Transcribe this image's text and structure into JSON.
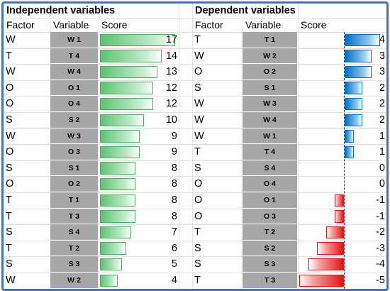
{
  "independent": {
    "title": "Independent variables",
    "headers": {
      "factor": "Factor",
      "variable": "Variable",
      "score": "Score"
    },
    "rows": [
      {
        "factor": "W",
        "variable": "W 1",
        "score": 17
      },
      {
        "factor": "T",
        "variable": "T 4",
        "score": 14
      },
      {
        "factor": "W",
        "variable": "W 4",
        "score": 13
      },
      {
        "factor": "O",
        "variable": "O 1",
        "score": 12
      },
      {
        "factor": "O",
        "variable": "O 4",
        "score": 12
      },
      {
        "factor": "S",
        "variable": "S 2",
        "score": 10
      },
      {
        "factor": "W",
        "variable": "W 3",
        "score": 9
      },
      {
        "factor": "O",
        "variable": "O 3",
        "score": 9
      },
      {
        "factor": "S",
        "variable": "S 1",
        "score": 8
      },
      {
        "factor": "O",
        "variable": "O 2",
        "score": 8
      },
      {
        "factor": "T",
        "variable": "T 1",
        "score": 8
      },
      {
        "factor": "T",
        "variable": "T 3",
        "score": 8
      },
      {
        "factor": "S",
        "variable": "S 4",
        "score": 7
      },
      {
        "factor": "T",
        "variable": "T 2",
        "score": 6
      },
      {
        "factor": "S",
        "variable": "S 3",
        "score": 5
      },
      {
        "factor": "W",
        "variable": "W 2",
        "score": 4
      }
    ]
  },
  "dependent": {
    "title": "Dependent variables",
    "headers": {
      "factor": "Factor",
      "variable": "Variable",
      "score": "Score"
    },
    "rows": [
      {
        "factor": "T",
        "variable": "T 1",
        "score": 4
      },
      {
        "factor": "W",
        "variable": "W 2",
        "score": 3
      },
      {
        "factor": "O",
        "variable": "O 2",
        "score": 3
      },
      {
        "factor": "S",
        "variable": "S 1",
        "score": 2
      },
      {
        "factor": "W",
        "variable": "W 3",
        "score": 2
      },
      {
        "factor": "W",
        "variable": "W 4",
        "score": 2
      },
      {
        "factor": "W",
        "variable": "W 1",
        "score": 1
      },
      {
        "factor": "T",
        "variable": "T 4",
        "score": 1
      },
      {
        "factor": "S",
        "variable": "S 4",
        "score": 0
      },
      {
        "factor": "O",
        "variable": "O 4",
        "score": 0
      },
      {
        "factor": "O",
        "variable": "O 1",
        "score": -1
      },
      {
        "factor": "O",
        "variable": "O 3",
        "score": -1
      },
      {
        "factor": "T",
        "variable": "T 2",
        "score": -2
      },
      {
        "factor": "S",
        "variable": "S 2",
        "score": -3
      },
      {
        "factor": "S",
        "variable": "S 3",
        "score": -4
      },
      {
        "factor": "T",
        "variable": "T 3",
        "score": -5
      }
    ]
  },
  "colors": {
    "frame": "#4472c4",
    "variable_fill": "#a6a6a6",
    "bar_independent": "#5cc272",
    "bar_positive": "#0070c0",
    "bar_negative": "#e41212"
  }
}
